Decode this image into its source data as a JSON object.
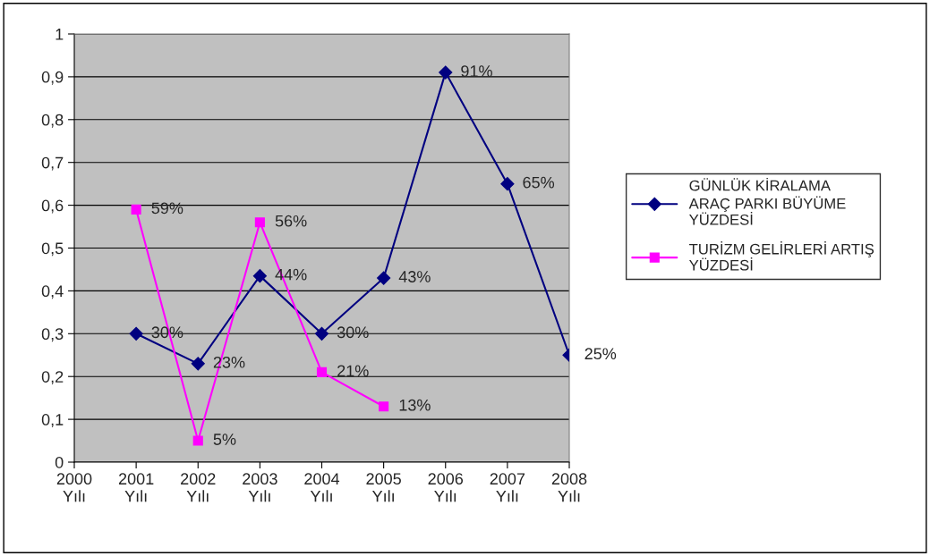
{
  "chart_data": {
    "type": "line",
    "categories": [
      "2000\nYılı",
      "2001\nYılı",
      "2002\nYılı",
      "2003\nYılı",
      "2004\nYılı",
      "2005\nYılı",
      "2006\nYılı",
      "2007\nYılı",
      "2008\nYılı"
    ],
    "series": [
      {
        "name": "GÜNLÜK KİRALAMA\nARAÇ PARKI BÜYÜME\nYÜZDESİ",
        "color": "#000080",
        "marker": "diamond",
        "values": [
          null,
          0.3,
          0.23,
          0.435,
          0.3,
          0.43,
          0.91,
          0.65,
          0.25
        ],
        "value_labels": [
          null,
          "30%",
          "23%",
          "44%",
          "30%",
          "43%",
          "91%",
          "65%",
          "25%"
        ]
      },
      {
        "name": "TURİZM GELİRLERİ ARTIŞ\nYÜZDESİ",
        "color": "#ff00ff",
        "marker": "square",
        "values": [
          null,
          0.59,
          0.05,
          0.56,
          0.21,
          0.13,
          null,
          null,
          null
        ],
        "value_labels": [
          null,
          "59%",
          "5%",
          "56%",
          "21%",
          "13%",
          null,
          null,
          null
        ]
      }
    ],
    "ylim": [
      0,
      1
    ],
    "yticks": [
      {
        "value": 0,
        "label": "0"
      },
      {
        "value": 0.1,
        "label": "0,1"
      },
      {
        "value": 0.2,
        "label": "0,2"
      },
      {
        "value": 0.3,
        "label": "0,3"
      },
      {
        "value": 0.4,
        "label": "0,4"
      },
      {
        "value": 0.5,
        "label": "0,5"
      },
      {
        "value": 0.6,
        "label": "0,6"
      },
      {
        "value": 0.7,
        "label": "0,7"
      },
      {
        "value": 0.8,
        "label": "0,8"
      },
      {
        "value": 0.9,
        "label": "0,9"
      },
      {
        "value": 1,
        "label": "1"
      }
    ],
    "grid": "y",
    "legend": "right",
    "line_style": "solid"
  }
}
